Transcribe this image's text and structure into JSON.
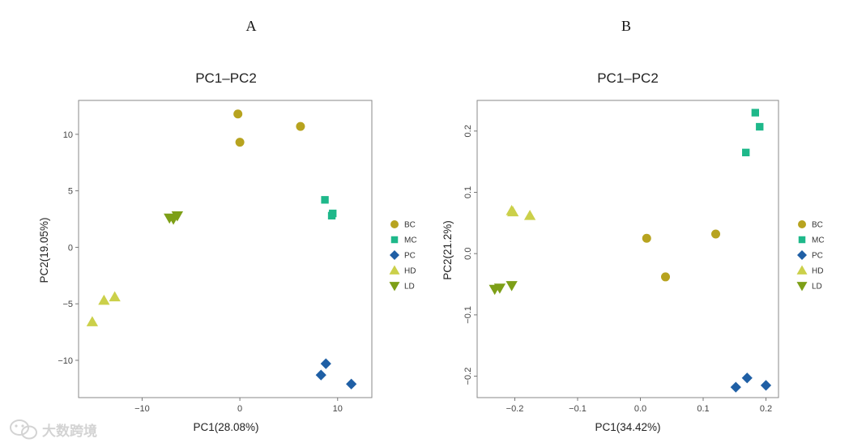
{
  "colors": {
    "BC": "#b7a31f",
    "MC": "#1eb88a",
    "PC": "#1f5fa5",
    "HD": "#cbd04a",
    "LD": "#7d9f17"
  },
  "legend": [
    {
      "group": "BC",
      "label": "BC",
      "shape": "circle"
    },
    {
      "group": "MC",
      "label": "MC",
      "shape": "square"
    },
    {
      "group": "PC",
      "label": "PC",
      "shape": "diamond"
    },
    {
      "group": "HD",
      "label": "HD",
      "shape": "triangle-up"
    },
    {
      "group": "LD",
      "label": "LD",
      "shape": "triangle-down"
    }
  ],
  "watermark": {
    "text": "大数跨境",
    "icon": "wechat-logo-icon"
  },
  "chart_data": [
    {
      "type": "scatter",
      "panel_label": "A",
      "title": "PC1–PC2",
      "xlabel": "PC1(28.08%)",
      "ylabel": "PC2(19.05%)",
      "xlim": [
        -16.5,
        13.5
      ],
      "ylim": [
        -13.3,
        13.0
      ],
      "xticks": [
        -10,
        0,
        10
      ],
      "xtick_labels": [
        "−10",
        "0",
        "10"
      ],
      "yticks": [
        -10,
        -5,
        0,
        5,
        10
      ],
      "ytick_labels": [
        "−10",
        "−5",
        "0",
        "5",
        "10"
      ],
      "ytick_rotated": false,
      "series": [
        {
          "name": "BC",
          "points": [
            [
              -0.2,
              11.8
            ],
            [
              0.0,
              9.3
            ],
            [
              6.2,
              10.7
            ]
          ]
        },
        {
          "name": "MC",
          "points": [
            [
              8.7,
              4.2
            ],
            [
              9.4,
              2.8
            ],
            [
              9.5,
              3.0
            ]
          ]
        },
        {
          "name": "PC",
          "points": [
            [
              8.3,
              -11.3
            ],
            [
              8.8,
              -10.3
            ],
            [
              11.4,
              -12.1
            ]
          ]
        },
        {
          "name": "HD",
          "points": [
            [
              -15.1,
              -6.6
            ],
            [
              -13.9,
              -4.7
            ],
            [
              -12.8,
              -4.4
            ]
          ]
        },
        {
          "name": "LD",
          "points": [
            [
              -7.2,
              2.6
            ],
            [
              -6.8,
              2.5
            ],
            [
              -6.4,
              2.8
            ]
          ]
        }
      ]
    },
    {
      "type": "scatter",
      "panel_label": "B",
      "title": "PC1–PC2",
      "xlabel": "PC1(34.42%)",
      "ylabel": "PC2(21.2%)",
      "xlim": [
        -0.26,
        0.22
      ],
      "ylim": [
        -0.235,
        0.25
      ],
      "xticks": [
        -0.2,
        -0.1,
        0.0,
        0.1,
        0.2
      ],
      "xtick_labels": [
        "−0.2",
        "−0.1",
        "0.0",
        "0.1",
        "0.2"
      ],
      "yticks": [
        -0.2,
        -0.1,
        0.0,
        0.1,
        0.2
      ],
      "ytick_labels": [
        "−0.2",
        "−0.1",
        "0.0",
        "0.1",
        "0.2"
      ],
      "ytick_rotated": true,
      "series": [
        {
          "name": "BC",
          "points": [
            [
              0.01,
              0.025
            ],
            [
              0.04,
              -0.038
            ],
            [
              0.12,
              0.032
            ]
          ]
        },
        {
          "name": "MC",
          "points": [
            [
              0.168,
              0.165
            ],
            [
              0.183,
              0.23
            ],
            [
              0.19,
              0.207
            ]
          ]
        },
        {
          "name": "PC",
          "points": [
            [
              0.152,
              -0.218
            ],
            [
              0.17,
              -0.203
            ],
            [
              0.2,
              -0.215
            ]
          ]
        },
        {
          "name": "HD",
          "points": [
            [
              -0.205,
              0.07
            ],
            [
              -0.203,
              0.068
            ],
            [
              -0.176,
              0.062
            ]
          ]
        },
        {
          "name": "LD",
          "points": [
            [
              -0.232,
              -0.058
            ],
            [
              -0.224,
              -0.056
            ],
            [
              -0.205,
              -0.052
            ]
          ]
        }
      ]
    }
  ]
}
